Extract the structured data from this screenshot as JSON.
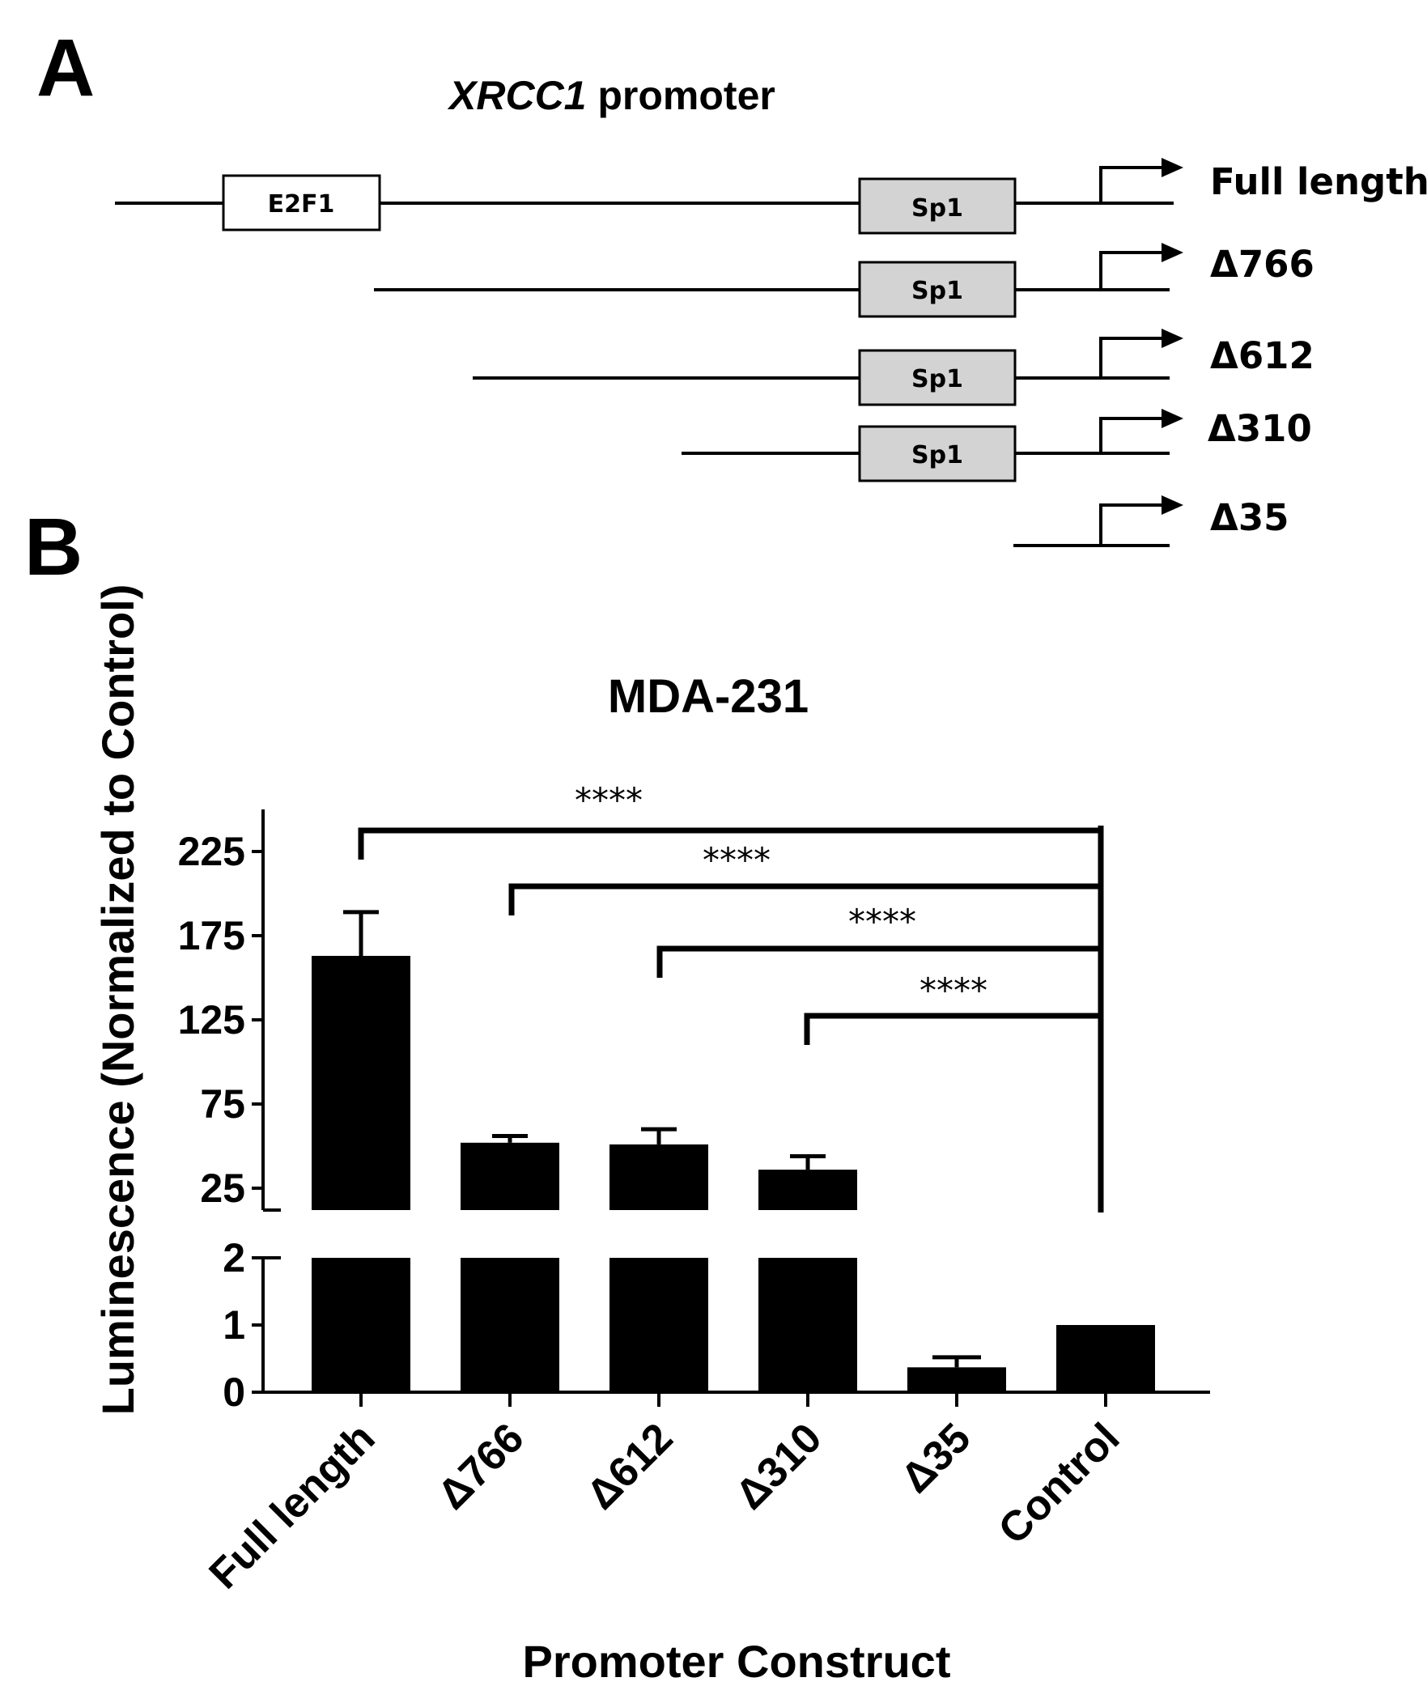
{
  "panel_a": {
    "letter": "A",
    "title_italic": "XRCC1",
    "title_rest": " promoter",
    "sites": [
      "E2F1",
      "Sp1"
    ],
    "constructs": [
      {
        "name": "Full length",
        "has_e2f1": true,
        "has_sp1": true
      },
      {
        "name": "Δ766",
        "has_e2f1": false,
        "has_sp1": true
      },
      {
        "name": "Δ612",
        "has_e2f1": false,
        "has_sp1": true
      },
      {
        "name": "Δ310",
        "has_e2f1": false,
        "has_sp1": true
      },
      {
        "name": "Δ35",
        "has_e2f1": false,
        "has_sp1": false
      }
    ]
  },
  "panel_b": {
    "letter": "B"
  },
  "chart_data": {
    "type": "bar",
    "title": "MDA-231",
    "xlabel": "Promoter Construct",
    "ylabel": "Luminescence (Normalized to Control)",
    "categories": [
      "Full length",
      "Δ766",
      "Δ612",
      "Δ310",
      "Δ35",
      "Control"
    ],
    "values": [
      163,
      52,
      51,
      36,
      0.37,
      1.0
    ],
    "errors": [
      26,
      4,
      9,
      8,
      0.15,
      0
    ],
    "broken_axis": true,
    "lower_segment": {
      "ylim": [
        0,
        2
      ],
      "ticks": [
        "0",
        "1",
        "2"
      ],
      "tick_values": [
        0,
        1,
        2
      ]
    },
    "upper_segment": {
      "ylim": [
        12,
        250
      ],
      "ticks": [
        "25",
        "75",
        "125",
        "175",
        "225"
      ],
      "tick_values": [
        25,
        75,
        125,
        175,
        225
      ]
    },
    "significance": [
      {
        "from": "Full length",
        "to": "Control",
        "label": "****"
      },
      {
        "from": "Δ766",
        "to": "Control",
        "label": "****"
      },
      {
        "from": "Δ612",
        "to": "Control",
        "label": "****"
      },
      {
        "from": "Δ310",
        "to": "Control",
        "label": "****"
      }
    ],
    "bar_color": "#000000"
  }
}
